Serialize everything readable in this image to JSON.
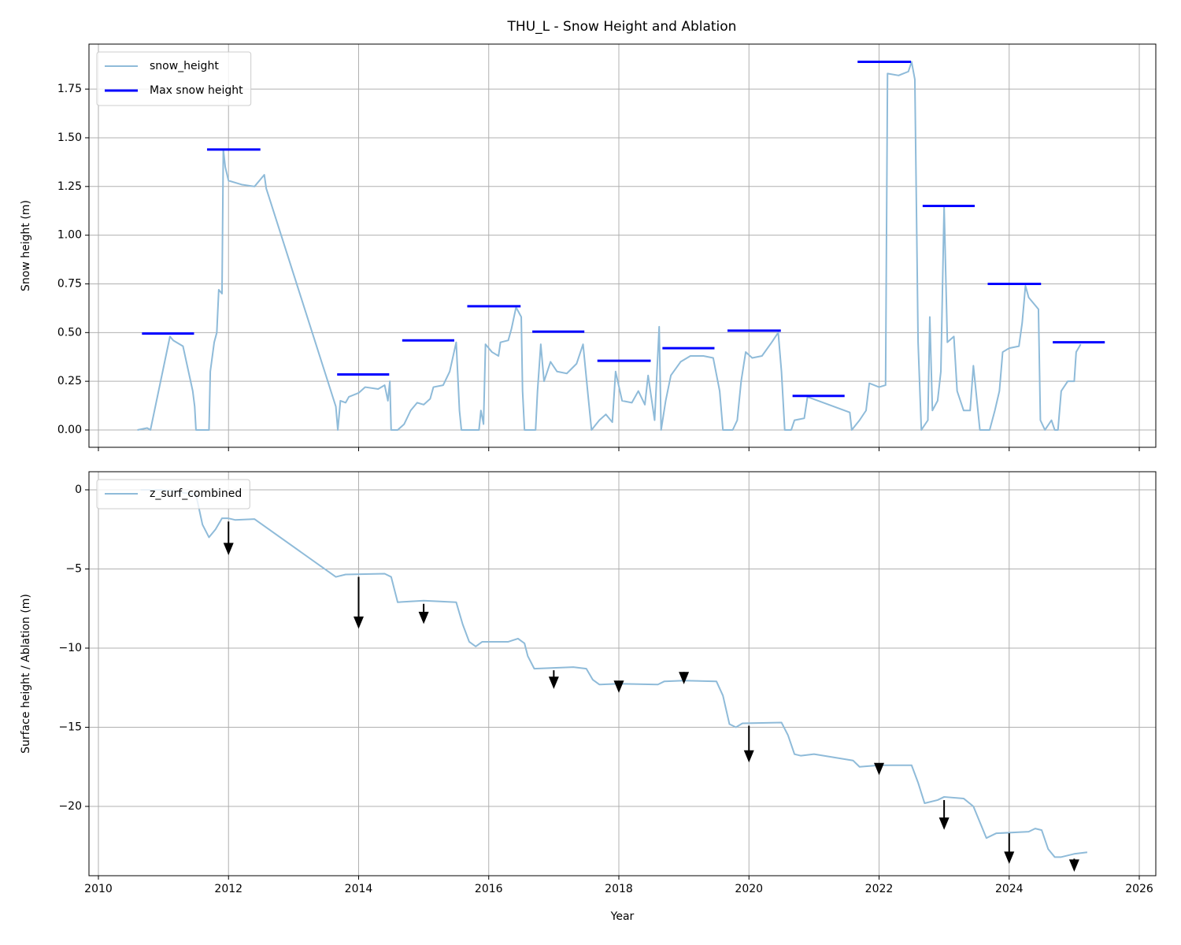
{
  "chart_data": [
    {
      "type": "line",
      "title": "THU_L - Snow Height and Ablation",
      "ylabel": "Snow height (m)",
      "xlim": [
        2009.855,
        2026.254
      ],
      "ylim": [
        -0.089,
        1.981
      ],
      "xticks": [
        2010,
        2012,
        2014,
        2016,
        2018,
        2020,
        2022,
        2024,
        2026
      ],
      "xtick_labels": false,
      "yticks": [
        {
          "value": 0,
          "label": "0.00"
        },
        {
          "value": 0.25,
          "label": "0.25"
        },
        {
          "value": 0.5,
          "label": "0.50"
        },
        {
          "value": 0.75,
          "label": "0.75"
        },
        {
          "value": 1,
          "label": "1.00"
        },
        {
          "value": 1.25,
          "label": "1.25"
        },
        {
          "value": 1.5,
          "label": "1.50"
        },
        {
          "value": 1.75,
          "label": "1.75"
        }
      ],
      "grid": true,
      "legend": "upper left",
      "series": [
        {
          "name": "snow_height",
          "color": "#8fbbd9",
          "x": [
            2010.6,
            2010.75,
            2010.8,
            2011.1,
            2011.15,
            2011.3,
            2011.45,
            2011.48,
            2011.5,
            2011.7,
            2011.72,
            2011.78,
            2011.82,
            2011.85,
            2011.9,
            2011.92,
            2011.95,
            2012.0,
            2012.2,
            2012.4,
            2012.5,
            2012.55,
            2012.58,
            2013.65,
            2013.68,
            2013.72,
            2013.8,
            2013.85,
            2014.0,
            2014.1,
            2014.3,
            2014.4,
            2014.45,
            2014.48,
            2014.5,
            2014.6,
            2014.7,
            2014.8,
            2014.9,
            2015.0,
            2015.1,
            2015.15,
            2015.3,
            2015.4,
            2015.5,
            2015.55,
            2015.58,
            2015.85,
            2015.88,
            2015.92,
            2015.95,
            2016.05,
            2016.15,
            2016.18,
            2016.3,
            2016.35,
            2016.42,
            2016.5,
            2016.52,
            2016.55,
            2016.72,
            2016.75,
            2016.8,
            2016.85,
            2016.95,
            2017.05,
            2017.2,
            2017.35,
            2017.45,
            2017.52,
            2017.58,
            2017.7,
            2017.8,
            2017.9,
            2017.95,
            2018.05,
            2018.2,
            2018.3,
            2018.4,
            2018.45,
            2018.55,
            2018.62,
            2018.65,
            2018.72,
            2018.8,
            2018.95,
            2019.1,
            2019.3,
            2019.45,
            2019.55,
            2019.6,
            2019.75,
            2019.82,
            2019.88,
            2019.95,
            2020.05,
            2020.2,
            2020.35,
            2020.45,
            2020.5,
            2020.55,
            2020.65,
            2020.7,
            2020.85,
            2020.9,
            2021.55,
            2021.58,
            2021.7,
            2021.8,
            2021.85,
            2022.0,
            2022.1,
            2022.13,
            2022.3,
            2022.45,
            2022.5,
            2022.55,
            2022.6,
            2022.65,
            2022.75,
            2022.78,
            2022.82,
            2022.9,
            2022.95,
            2023.0,
            2023.05,
            2023.15,
            2023.2,
            2023.3,
            2023.4,
            2023.45,
            2023.55,
            2023.7,
            2023.78,
            2023.85,
            2023.9,
            2024.0,
            2024.15,
            2024.2,
            2024.25,
            2024.3,
            2024.45,
            2024.48,
            2024.55,
            2024.65,
            2024.7,
            2024.75,
            2024.8,
            2024.9,
            2025.0,
            2025.03,
            2025.1
          ],
          "values": [
            0,
            0.01,
            0,
            0.48,
            0.46,
            0.43,
            0.2,
            0.12,
            0,
            0,
            0.3,
            0.45,
            0.5,
            0.72,
            0.7,
            1.44,
            1.35,
            1.28,
            1.26,
            1.25,
            1.29,
            1.31,
            1.24,
            0.12,
            0,
            0.15,
            0.14,
            0.17,
            0.19,
            0.22,
            0.21,
            0.23,
            0.15,
            0.25,
            0,
            0,
            0.03,
            0.1,
            0.14,
            0.13,
            0.16,
            0.22,
            0.23,
            0.3,
            0.45,
            0.1,
            0,
            0,
            0.1,
            0.03,
            0.44,
            0.4,
            0.38,
            0.45,
            0.46,
            0.52,
            0.63,
            0.58,
            0.2,
            0,
            0,
            0.2,
            0.44,
            0.25,
            0.35,
            0.3,
            0.29,
            0.34,
            0.44,
            0.2,
            0,
            0.05,
            0.08,
            0.04,
            0.3,
            0.15,
            0.14,
            0.2,
            0.13,
            0.28,
            0.05,
            0.53,
            0,
            0.15,
            0.28,
            0.35,
            0.38,
            0.38,
            0.37,
            0.2,
            0,
            0,
            0.05,
            0.25,
            0.4,
            0.37,
            0.38,
            0.45,
            0.5,
            0.3,
            0,
            0,
            0.05,
            0.06,
            0.17,
            0.09,
            0,
            0.05,
            0.1,
            0.24,
            0.22,
            0.23,
            1.83,
            1.82,
            1.84,
            1.89,
            1.8,
            0.45,
            0,
            0.05,
            0.58,
            0.1,
            0.15,
            0.3,
            1.15,
            0.45,
            0.48,
            0.2,
            0.1,
            0.1,
            0.33,
            0,
            0,
            0.1,
            0.2,
            0.4,
            0.42,
            0.43,
            0.55,
            0.74,
            0.68,
            0.62,
            0.05,
            0,
            0.05,
            0,
            0,
            0.2,
            0.25,
            0.25,
            0.4,
            0.44
          ]
        },
        {
          "name": "Max snow height",
          "color": "#0000ff",
          "style": "segments",
          "x_start": [
            2010.67,
            2011.67,
            2013.67,
            2014.67,
            2015.67,
            2016.67,
            2017.67,
            2018.67,
            2019.67,
            2020.67,
            2021.67,
            2022.67,
            2023.67,
            2024.67
          ],
          "x_end": [
            2011.47,
            2012.49,
            2014.47,
            2015.47,
            2016.49,
            2017.47,
            2018.49,
            2019.47,
            2020.49,
            2021.47,
            2022.49,
            2023.47,
            2024.49,
            2025.47
          ],
          "values": [
            0.495,
            1.44,
            0.285,
            0.46,
            0.635,
            0.505,
            0.355,
            0.42,
            0.51,
            0.175,
            1.89,
            1.15,
            0.75,
            0.45
          ]
        }
      ]
    },
    {
      "type": "line",
      "xlabel": "Year",
      "ylabel": "Surface height / Ablation (m)",
      "xlim": [
        2009.855,
        2026.254
      ],
      "ylim": [
        -24.378,
        1.144
      ],
      "xticks": [
        2010,
        2012,
        2014,
        2016,
        2018,
        2020,
        2022,
        2024,
        2026
      ],
      "yticks": [
        0,
        {
          "value": -5,
          "label": "−5"
        },
        {
          "value": -10,
          "label": "−10"
        },
        {
          "value": -15,
          "label": "−15"
        },
        {
          "value": -20,
          "label": "−20"
        }
      ],
      "grid": true,
      "legend": "upper left",
      "series": [
        {
          "name": "z_surf_combined",
          "color": "#8fbbd9",
          "x": [
            2010.65,
            2011.0,
            2011.5,
            2011.6,
            2011.7,
            2011.8,
            2011.9,
            2012.0,
            2012.1,
            2012.4,
            2013.65,
            2013.8,
            2014.4,
            2014.5,
            2014.6,
            2015.0,
            2015.5,
            2015.6,
            2015.7,
            2015.8,
            2015.9,
            2016.3,
            2016.45,
            2016.55,
            2016.6,
            2016.7,
            2017.0,
            2017.3,
            2017.5,
            2017.6,
            2017.7,
            2018.0,
            2018.6,
            2018.7,
            2019.0,
            2019.5,
            2019.6,
            2019.7,
            2019.8,
            2019.9,
            2020.5,
            2020.6,
            2020.7,
            2020.8,
            2021.0,
            2021.6,
            2021.7,
            2022.0,
            2022.5,
            2022.6,
            2022.7,
            2022.9,
            2023.0,
            2023.3,
            2023.45,
            2023.55,
            2023.65,
            2023.8,
            2024.3,
            2024.4,
            2024.5,
            2024.6,
            2024.7,
            2024.8,
            2025.0,
            2025.2
          ],
          "values": [
            0,
            0,
            -0.3,
            -2.2,
            -3.0,
            -2.5,
            -1.8,
            -1.8,
            -1.9,
            -1.85,
            -5.5,
            -5.35,
            -5.3,
            -5.5,
            -7.1,
            -7.0,
            -7.1,
            -8.5,
            -9.6,
            -9.9,
            -9.6,
            -9.6,
            -9.4,
            -9.7,
            -10.5,
            -11.3,
            -11.25,
            -11.2,
            -11.3,
            -12.0,
            -12.3,
            -12.25,
            -12.3,
            -12.1,
            -12.05,
            -12.1,
            -13.0,
            -14.8,
            -15.0,
            -14.75,
            -14.7,
            -15.5,
            -16.7,
            -16.8,
            -16.7,
            -17.1,
            -17.5,
            -17.4,
            -17.4,
            -18.5,
            -19.8,
            -19.6,
            -19.4,
            -19.5,
            -20.0,
            -21.0,
            -22.0,
            -21.7,
            -21.6,
            -21.4,
            -21.5,
            -22.7,
            -23.2,
            -23.2,
            -23.0,
            -22.9
          ]
        }
      ],
      "arrows": {
        "color": "#000000",
        "x": [
          2012,
          2014,
          2015,
          2017,
          2018,
          2019,
          2020,
          2022,
          2023,
          2024,
          2025
        ],
        "start": [
          -2.0,
          -5.5,
          -7.2,
          -11.4,
          -12.15,
          -11.5,
          -14.9,
          -17.3,
          -19.6,
          -21.7,
          -23.3
        ],
        "end": [
          -4.0,
          -8.65,
          -8.35,
          -12.45,
          -12.7,
          -12.15,
          -17.1,
          -17.9,
          -21.35,
          -23.5,
          -24.0
        ]
      }
    }
  ]
}
